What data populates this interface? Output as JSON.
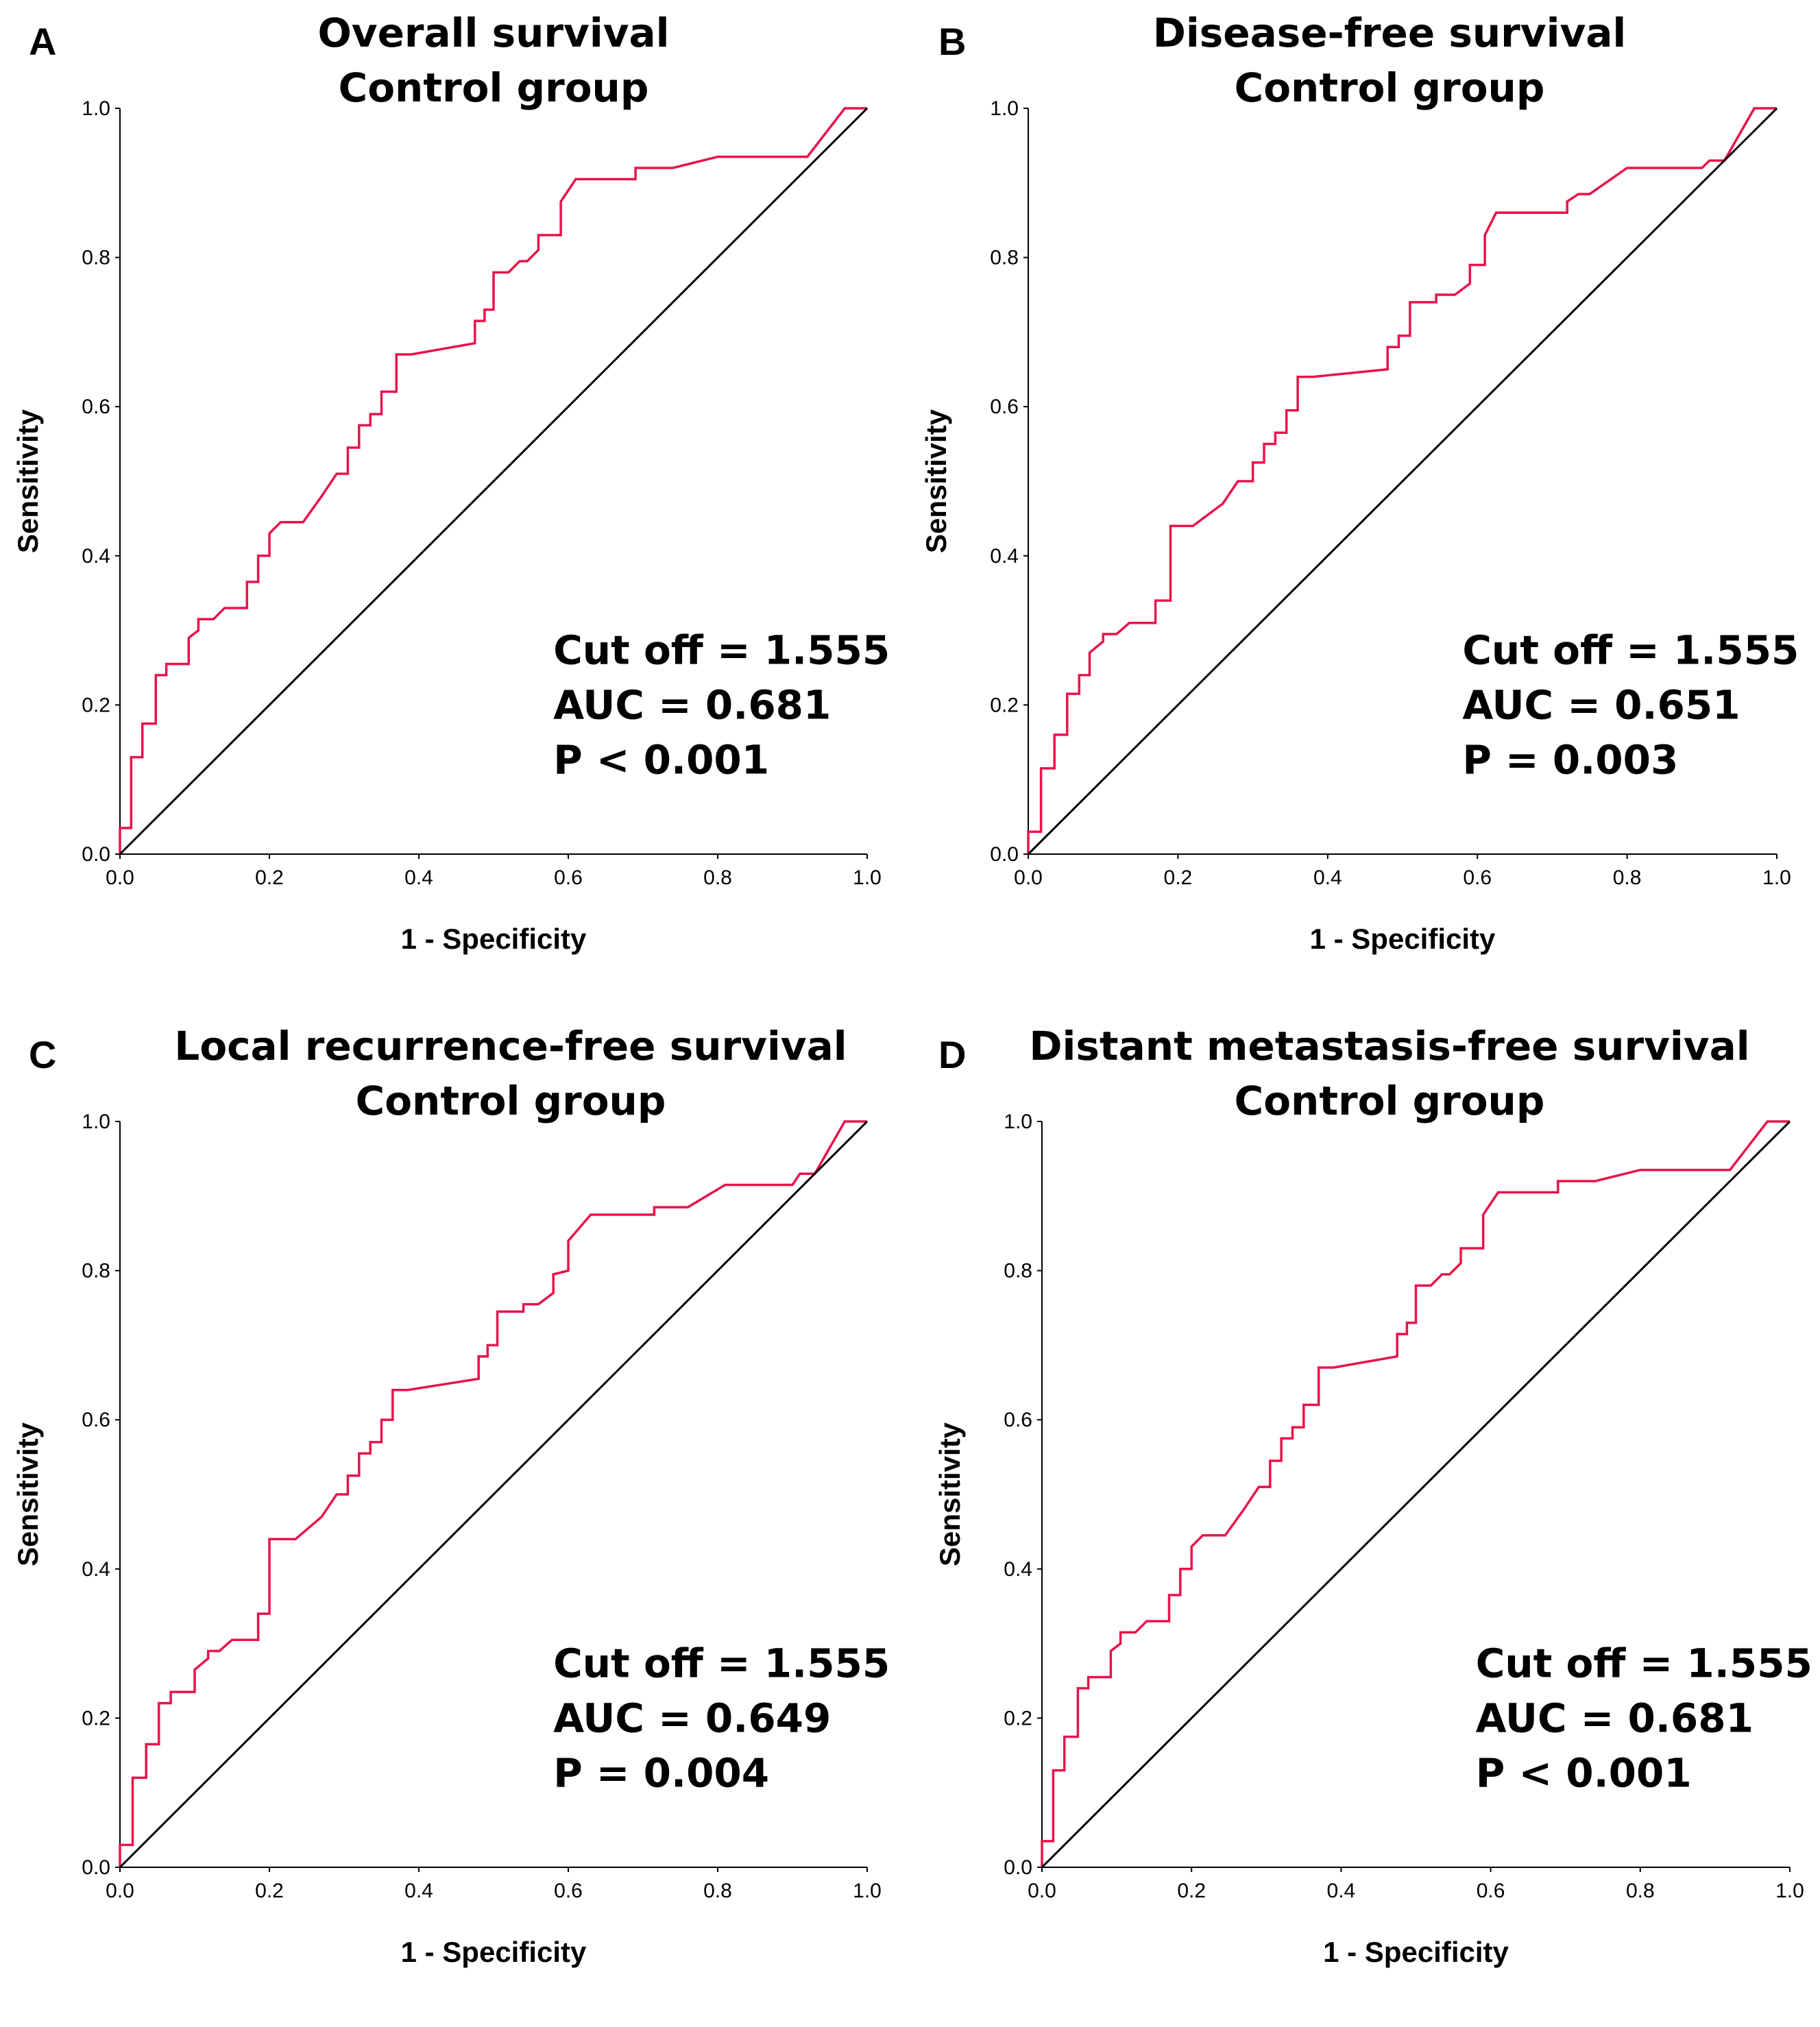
{
  "chart_data": [
    {
      "type": "line",
      "panel_letter": "A",
      "title": [
        "Overall survival",
        "Control group"
      ],
      "xlabel": "1 - Specificity",
      "ylabel": "Sensitivity",
      "xlim": [
        0,
        1
      ],
      "ylim": [
        0,
        1
      ],
      "xticks": [
        "0.0",
        "0.2",
        "0.4",
        "0.6",
        "0.8",
        "1.0"
      ],
      "yticks": [
        "0.0",
        "0.2",
        "0.4",
        "0.6",
        "0.8",
        "1.0"
      ],
      "annotations": [
        "Cut off = 1.555",
        "AUC = 0.681",
        "P < 0.001"
      ],
      "series": [
        {
          "name": "ROC",
          "color": "#e8134a",
          "points": [
            [
              0,
              0
            ],
            [
              0,
              0.035
            ],
            [
              0.015,
              0.035
            ],
            [
              0.015,
              0.13
            ],
            [
              0.03,
              0.13
            ],
            [
              0.03,
              0.175
            ],
            [
              0.048,
              0.175
            ],
            [
              0.048,
              0.24
            ],
            [
              0.062,
              0.24
            ],
            [
              0.062,
              0.255
            ],
            [
              0.092,
              0.255
            ],
            [
              0.092,
              0.29
            ],
            [
              0.105,
              0.3
            ],
            [
              0.105,
              0.315
            ],
            [
              0.125,
              0.315
            ],
            [
              0.14,
              0.33
            ],
            [
              0.17,
              0.33
            ],
            [
              0.17,
              0.365
            ],
            [
              0.185,
              0.365
            ],
            [
              0.185,
              0.4
            ],
            [
              0.2,
              0.4
            ],
            [
              0.2,
              0.43
            ],
            [
              0.215,
              0.445
            ],
            [
              0.245,
              0.445
            ],
            [
              0.27,
              0.48
            ],
            [
              0.29,
              0.51
            ],
            [
              0.305,
              0.51
            ],
            [
              0.305,
              0.545
            ],
            [
              0.32,
              0.545
            ],
            [
              0.32,
              0.575
            ],
            [
              0.335,
              0.575
            ],
            [
              0.335,
              0.59
            ],
            [
              0.35,
              0.59
            ],
            [
              0.35,
              0.62
            ],
            [
              0.37,
              0.62
            ],
            [
              0.37,
              0.67
            ],
            [
              0.39,
              0.67
            ],
            [
              0.475,
              0.685
            ],
            [
              0.475,
              0.715
            ],
            [
              0.488,
              0.715
            ],
            [
              0.488,
              0.73
            ],
            [
              0.5,
              0.73
            ],
            [
              0.5,
              0.78
            ],
            [
              0.52,
              0.78
            ],
            [
              0.535,
              0.795
            ],
            [
              0.545,
              0.795
            ],
            [
              0.56,
              0.81
            ],
            [
              0.56,
              0.83
            ],
            [
              0.59,
              0.83
            ],
            [
              0.59,
              0.875
            ],
            [
              0.61,
              0.905
            ],
            [
              0.69,
              0.905
            ],
            [
              0.69,
              0.92
            ],
            [
              0.74,
              0.92
            ],
            [
              0.8,
              0.935
            ],
            [
              0.92,
              0.935
            ],
            [
              0.97,
              1
            ],
            [
              1,
              1
            ]
          ]
        },
        {
          "name": "Reference",
          "color": "#000000",
          "points": [
            [
              0,
              0
            ],
            [
              1,
              1
            ]
          ]
        }
      ]
    },
    {
      "type": "line",
      "panel_letter": "B",
      "title": [
        "Disease-free survival",
        "Control group"
      ],
      "xlabel": "1 - Specificity",
      "ylabel": "Sensitivity",
      "xlim": [
        0,
        1
      ],
      "ylim": [
        0,
        1
      ],
      "xticks": [
        "0.0",
        "0.2",
        "0.4",
        "0.6",
        "0.8",
        "1.0"
      ],
      "yticks": [
        "0.0",
        "0.2",
        "0.4",
        "0.6",
        "0.8",
        "1.0"
      ],
      "annotations": [
        "Cut off = 1.555",
        "AUC = 0.651",
        "P = 0.003"
      ],
      "series": [
        {
          "name": "ROC",
          "color": "#e8134a",
          "points": [
            [
              0,
              0
            ],
            [
              0,
              0.03
            ],
            [
              0.017,
              0.03
            ],
            [
              0.017,
              0.115
            ],
            [
              0.035,
              0.115
            ],
            [
              0.035,
              0.16
            ],
            [
              0.052,
              0.16
            ],
            [
              0.052,
              0.215
            ],
            [
              0.068,
              0.215
            ],
            [
              0.068,
              0.24
            ],
            [
              0.082,
              0.24
            ],
            [
              0.082,
              0.27
            ],
            [
              0.1,
              0.285
            ],
            [
              0.1,
              0.295
            ],
            [
              0.118,
              0.295
            ],
            [
              0.135,
              0.31
            ],
            [
              0.17,
              0.31
            ],
            [
              0.17,
              0.34
            ],
            [
              0.19,
              0.34
            ],
            [
              0.19,
              0.44
            ],
            [
              0.22,
              0.44
            ],
            [
              0.26,
              0.47
            ],
            [
              0.28,
              0.5
            ],
            [
              0.3,
              0.5
            ],
            [
              0.3,
              0.525
            ],
            [
              0.315,
              0.525
            ],
            [
              0.315,
              0.55
            ],
            [
              0.33,
              0.55
            ],
            [
              0.33,
              0.565
            ],
            [
              0.345,
              0.565
            ],
            [
              0.345,
              0.595
            ],
            [
              0.36,
              0.595
            ],
            [
              0.36,
              0.64
            ],
            [
              0.38,
              0.64
            ],
            [
              0.48,
              0.65
            ],
            [
              0.48,
              0.68
            ],
            [
              0.495,
              0.68
            ],
            [
              0.495,
              0.695
            ],
            [
              0.51,
              0.695
            ],
            [
              0.51,
              0.74
            ],
            [
              0.545,
              0.74
            ],
            [
              0.545,
              0.75
            ],
            [
              0.57,
              0.75
            ],
            [
              0.59,
              0.765
            ],
            [
              0.59,
              0.79
            ],
            [
              0.61,
              0.79
            ],
            [
              0.61,
              0.83
            ],
            [
              0.625,
              0.86
            ],
            [
              0.72,
              0.86
            ],
            [
              0.72,
              0.875
            ],
            [
              0.735,
              0.885
            ],
            [
              0.75,
              0.885
            ],
            [
              0.8,
              0.92
            ],
            [
              0.9,
              0.92
            ],
            [
              0.91,
              0.93
            ],
            [
              0.93,
              0.93
            ],
            [
              0.97,
              1
            ],
            [
              1,
              1
            ]
          ]
        },
        {
          "name": "Reference",
          "color": "#000000",
          "points": [
            [
              0,
              0
            ],
            [
              1,
              1
            ]
          ]
        }
      ]
    },
    {
      "type": "line",
      "panel_letter": "C",
      "title": [
        "Local recurrence-free survival",
        "Control group"
      ],
      "xlabel": "1 - Specificity",
      "ylabel": "Sensitivity",
      "xlim": [
        0,
        1
      ],
      "ylim": [
        0,
        1
      ],
      "xticks": [
        "0.0",
        "0.2",
        "0.4",
        "0.6",
        "0.8",
        "1.0"
      ],
      "yticks": [
        "0.0",
        "0.2",
        "0.4",
        "0.6",
        "0.8",
        "1.0"
      ],
      "annotations": [
        "Cut off = 1.555",
        "AUC = 0.649",
        "P = 0.004"
      ],
      "series": [
        {
          "name": "ROC",
          "color": "#e8134a",
          "points": [
            [
              0,
              0
            ],
            [
              0,
              0.03
            ],
            [
              0.017,
              0.03
            ],
            [
              0.017,
              0.12
            ],
            [
              0.035,
              0.12
            ],
            [
              0.035,
              0.165
            ],
            [
              0.052,
              0.165
            ],
            [
              0.052,
              0.22
            ],
            [
              0.068,
              0.22
            ],
            [
              0.068,
              0.235
            ],
            [
              0.1,
              0.235
            ],
            [
              0.1,
              0.265
            ],
            [
              0.118,
              0.28
            ],
            [
              0.118,
              0.29
            ],
            [
              0.133,
              0.29
            ],
            [
              0.15,
              0.305
            ],
            [
              0.185,
              0.305
            ],
            [
              0.185,
              0.34
            ],
            [
              0.2,
              0.34
            ],
            [
              0.2,
              0.44
            ],
            [
              0.235,
              0.44
            ],
            [
              0.27,
              0.47
            ],
            [
              0.29,
              0.5
            ],
            [
              0.305,
              0.5
            ],
            [
              0.305,
              0.525
            ],
            [
              0.32,
              0.525
            ],
            [
              0.32,
              0.555
            ],
            [
              0.335,
              0.555
            ],
            [
              0.335,
              0.57
            ],
            [
              0.35,
              0.57
            ],
            [
              0.35,
              0.6
            ],
            [
              0.365,
              0.6
            ],
            [
              0.365,
              0.64
            ],
            [
              0.385,
              0.64
            ],
            [
              0.48,
              0.655
            ],
            [
              0.48,
              0.685
            ],
            [
              0.492,
              0.685
            ],
            [
              0.492,
              0.7
            ],
            [
              0.505,
              0.7
            ],
            [
              0.505,
              0.745
            ],
            [
              0.54,
              0.745
            ],
            [
              0.54,
              0.755
            ],
            [
              0.56,
              0.755
            ],
            [
              0.58,
              0.77
            ],
            [
              0.58,
              0.795
            ],
            [
              0.6,
              0.8
            ],
            [
              0.6,
              0.84
            ],
            [
              0.63,
              0.875
            ],
            [
              0.715,
              0.875
            ],
            [
              0.715,
              0.885
            ],
            [
              0.76,
              0.885
            ],
            [
              0.81,
              0.915
            ],
            [
              0.9,
              0.915
            ],
            [
              0.91,
              0.93
            ],
            [
              0.93,
              0.93
            ],
            [
              0.97,
              1
            ],
            [
              1,
              1
            ]
          ]
        },
        {
          "name": "Reference",
          "color": "#000000",
          "points": [
            [
              0,
              0
            ],
            [
              1,
              1
            ]
          ]
        }
      ]
    },
    {
      "type": "line",
      "panel_letter": "D",
      "title": [
        "Distant metastasis-free survival",
        "Control group"
      ],
      "xlabel": "1 - Specificity",
      "ylabel": "Sensitivity",
      "xlim": [
        0,
        1
      ],
      "ylim": [
        0,
        1
      ],
      "xticks": [
        "0.0",
        "0.2",
        "0.4",
        "0.6",
        "0.8",
        "1.0"
      ],
      "yticks": [
        "0.0",
        "0.2",
        "0.4",
        "0.6",
        "0.8",
        "1.0"
      ],
      "annotations": [
        "Cut off = 1.555",
        "AUC = 0.681",
        "P < 0.001"
      ],
      "series": [
        {
          "name": "ROC",
          "color": "#e8134a",
          "points": [
            [
              0,
              0
            ],
            [
              0,
              0.035
            ],
            [
              0.015,
              0.035
            ],
            [
              0.015,
              0.13
            ],
            [
              0.03,
              0.13
            ],
            [
              0.03,
              0.175
            ],
            [
              0.048,
              0.175
            ],
            [
              0.048,
              0.24
            ],
            [
              0.062,
              0.24
            ],
            [
              0.062,
              0.255
            ],
            [
              0.092,
              0.255
            ],
            [
              0.092,
              0.29
            ],
            [
              0.105,
              0.3
            ],
            [
              0.105,
              0.315
            ],
            [
              0.125,
              0.315
            ],
            [
              0.14,
              0.33
            ],
            [
              0.17,
              0.33
            ],
            [
              0.17,
              0.365
            ],
            [
              0.185,
              0.365
            ],
            [
              0.185,
              0.4
            ],
            [
              0.2,
              0.4
            ],
            [
              0.2,
              0.43
            ],
            [
              0.215,
              0.445
            ],
            [
              0.245,
              0.445
            ],
            [
              0.27,
              0.48
            ],
            [
              0.29,
              0.51
            ],
            [
              0.305,
              0.51
            ],
            [
              0.305,
              0.545
            ],
            [
              0.32,
              0.545
            ],
            [
              0.32,
              0.575
            ],
            [
              0.335,
              0.575
            ],
            [
              0.335,
              0.59
            ],
            [
              0.35,
              0.59
            ],
            [
              0.35,
              0.62
            ],
            [
              0.37,
              0.62
            ],
            [
              0.37,
              0.67
            ],
            [
              0.39,
              0.67
            ],
            [
              0.475,
              0.685
            ],
            [
              0.475,
              0.715
            ],
            [
              0.488,
              0.715
            ],
            [
              0.488,
              0.73
            ],
            [
              0.5,
              0.73
            ],
            [
              0.5,
              0.78
            ],
            [
              0.52,
              0.78
            ],
            [
              0.535,
              0.795
            ],
            [
              0.545,
              0.795
            ],
            [
              0.56,
              0.81
            ],
            [
              0.56,
              0.83
            ],
            [
              0.59,
              0.83
            ],
            [
              0.59,
              0.875
            ],
            [
              0.61,
              0.905
            ],
            [
              0.69,
              0.905
            ],
            [
              0.69,
              0.92
            ],
            [
              0.74,
              0.92
            ],
            [
              0.8,
              0.935
            ],
            [
              0.92,
              0.935
            ],
            [
              0.97,
              1
            ],
            [
              1,
              1
            ]
          ]
        },
        {
          "name": "Reference",
          "color": "#000000",
          "points": [
            [
              0,
              0
            ],
            [
              1,
              1
            ]
          ]
        }
      ]
    }
  ]
}
